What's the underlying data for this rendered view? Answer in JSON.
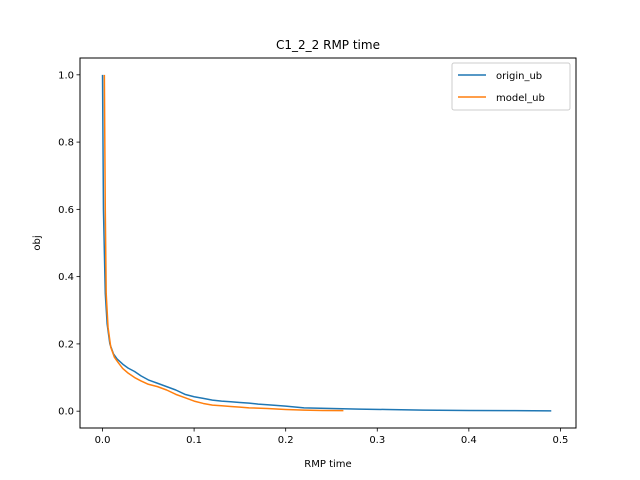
{
  "chart_data": {
    "type": "line",
    "title": "C1_2_2 RMP time",
    "xlabel": "RMP time",
    "ylabel": "obj",
    "xlim": [
      -0.0246,
      0.517
    ],
    "ylim": [
      -0.05,
      1.05
    ],
    "xticks": [
      0.0,
      0.1,
      0.2,
      0.3,
      0.4,
      0.5
    ],
    "xtick_labels": [
      "0.0",
      "0.1",
      "0.2",
      "0.3",
      "0.4",
      "0.5"
    ],
    "yticks": [
      0.0,
      0.2,
      0.4,
      0.6,
      0.8,
      1.0
    ],
    "ytick_labels": [
      "0.0",
      "0.2",
      "0.4",
      "0.6",
      "0.8",
      "1.0"
    ],
    "grid": false,
    "legend_position": "top-right",
    "series": [
      {
        "name": "origin_ub",
        "color": "#1f77b4",
        "x": [
          0.0,
          0.001,
          0.003,
          0.005,
          0.008,
          0.012,
          0.016,
          0.022,
          0.028,
          0.035,
          0.042,
          0.05,
          0.06,
          0.07,
          0.08,
          0.09,
          0.1,
          0.11,
          0.12,
          0.13,
          0.14,
          0.15,
          0.16,
          0.17,
          0.18,
          0.2,
          0.22,
          0.25,
          0.28,
          0.31,
          0.35,
          0.4,
          0.45,
          0.49
        ],
        "y": [
          1.0,
          0.6,
          0.35,
          0.26,
          0.2,
          0.17,
          0.155,
          0.14,
          0.128,
          0.118,
          0.105,
          0.093,
          0.083,
          0.073,
          0.063,
          0.05,
          0.043,
          0.038,
          0.033,
          0.03,
          0.028,
          0.026,
          0.024,
          0.021,
          0.019,
          0.015,
          0.01,
          0.008,
          0.006,
          0.005,
          0.003,
          0.002,
          0.0015,
          0.001
        ]
      },
      {
        "name": "model_ub",
        "color": "#ff7f0e",
        "x": [
          0.002,
          0.003,
          0.004,
          0.006,
          0.009,
          0.013,
          0.017,
          0.022,
          0.028,
          0.035,
          0.042,
          0.05,
          0.06,
          0.07,
          0.08,
          0.09,
          0.1,
          0.11,
          0.12,
          0.13,
          0.14,
          0.15,
          0.16,
          0.18,
          0.2,
          0.22,
          0.24,
          0.263
        ],
        "y": [
          1.0,
          0.6,
          0.35,
          0.25,
          0.19,
          0.16,
          0.145,
          0.127,
          0.113,
          0.1,
          0.09,
          0.08,
          0.073,
          0.063,
          0.05,
          0.04,
          0.03,
          0.023,
          0.018,
          0.016,
          0.014,
          0.012,
          0.01,
          0.008,
          0.005,
          0.003,
          0.002,
          0.0015
        ]
      }
    ]
  }
}
